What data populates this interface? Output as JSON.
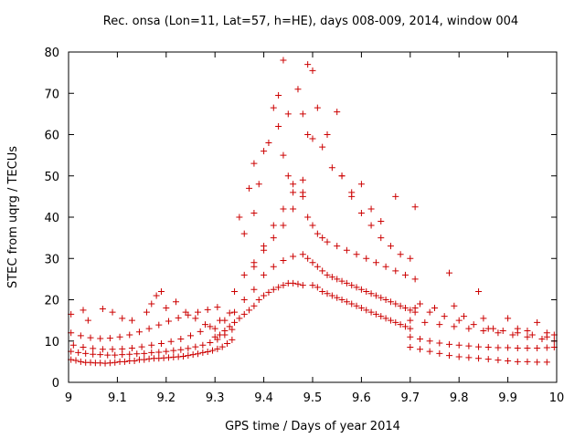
{
  "chart_data": {
    "type": "scatter",
    "title": "Rec. onsa (Lon=11, Lat=57, h=HE), days 008-009, 2014, window 004",
    "xlabel": "GPS time / Days of year 2014",
    "ylabel": "STEC from uqrg / TECUs",
    "xlim": [
      9.0,
      10.0
    ],
    "ylim": [
      0,
      80
    ],
    "xticks": [
      9.0,
      9.1,
      9.2,
      9.3,
      9.4,
      9.5,
      9.6,
      9.7,
      9.8,
      9.9,
      10.0
    ],
    "xtick_labels": [
      "9",
      "9.1",
      "9.2",
      "9.3",
      "9.4",
      "9.5",
      "9.6",
      "9.7",
      "9.8",
      "9.9",
      "10"
    ],
    "yticks": [
      0,
      10,
      20,
      30,
      40,
      50,
      60,
      70,
      80
    ],
    "ytick_labels": [
      "0",
      "10",
      "20",
      "30",
      "40",
      "50",
      "60",
      "70",
      "80"
    ],
    "marker": "+",
    "series_color": "#cc0000",
    "series": [
      {
        "name": "STEC",
        "x": [
          9.005,
          9.015,
          9.025,
          9.035,
          9.045,
          9.055,
          9.065,
          9.075,
          9.085,
          9.095,
          9.105,
          9.115,
          9.125,
          9.135,
          9.145,
          9.155,
          9.165,
          9.175,
          9.185,
          9.195,
          9.205,
          9.215,
          9.225,
          9.235,
          9.245,
          9.255,
          9.265,
          9.275,
          9.285,
          9.295,
          9.305,
          9.315,
          9.325,
          9.335,
          9.005,
          9.02,
          9.035,
          9.05,
          9.065,
          9.08,
          9.095,
          9.11,
          9.125,
          9.14,
          9.155,
          9.17,
          9.185,
          9.2,
          9.215,
          9.23,
          9.245,
          9.26,
          9.275,
          9.29,
          9.305,
          9.32,
          9.335,
          9.01,
          9.03,
          9.05,
          9.07,
          9.09,
          9.11,
          9.13,
          9.15,
          9.17,
          9.19,
          9.21,
          9.23,
          9.25,
          9.27,
          9.29,
          9.31,
          9.33,
          9.005,
          9.025,
          9.045,
          9.065,
          9.085,
          9.105,
          9.125,
          9.145,
          9.165,
          9.185,
          9.205,
          9.225,
          9.245,
          9.265,
          9.285,
          9.305,
          9.005,
          9.03,
          9.04,
          9.07,
          9.09,
          9.11,
          9.13,
          9.16,
          9.17,
          9.18,
          9.19,
          9.2,
          9.22,
          9.24,
          9.26,
          9.28,
          9.3,
          9.3,
          9.31,
          9.32,
          9.33,
          9.34,
          9.35,
          9.36,
          9.37,
          9.38,
          9.39,
          9.4,
          9.41,
          9.42,
          9.43,
          9.44,
          9.45,
          9.46,
          9.47,
          9.48,
          9.32,
          9.34,
          9.36,
          9.38,
          9.4,
          9.42,
          9.44,
          9.46,
          9.48,
          9.34,
          9.36,
          9.38,
          9.4,
          9.42,
          9.44,
          9.46,
          9.48,
          9.36,
          9.38,
          9.39,
          9.4,
          9.41,
          9.43,
          9.44,
          9.45,
          9.47,
          9.49,
          9.35,
          9.37,
          9.38,
          9.42,
          9.43,
          9.44,
          9.45,
          9.46,
          9.48,
          9.38,
          9.4,
          9.42,
          9.44,
          9.46,
          9.48,
          9.5,
          9.51,
          9.52,
          9.53,
          9.54,
          9.55,
          9.56,
          9.57,
          9.58,
          9.59,
          9.6,
          9.61,
          9.62,
          9.63,
          9.64,
          9.65,
          9.66,
          9.67,
          9.68,
          9.69,
          9.7,
          9.49,
          9.5,
          9.51,
          9.52,
          9.53,
          9.54,
          9.55,
          9.56,
          9.57,
          9.58,
          9.59,
          9.6,
          9.61,
          9.62,
          9.63,
          9.64,
          9.65,
          9.66,
          9.67,
          9.68,
          9.69,
          9.7,
          9.71,
          9.49,
          9.5,
          9.51,
          9.52,
          9.53,
          9.55,
          9.57,
          9.59,
          9.61,
          9.63,
          9.65,
          9.67,
          9.69,
          9.71,
          9.5,
          9.52,
          9.54,
          9.56,
          9.58,
          9.6,
          9.62,
          9.64,
          9.66,
          9.68,
          9.7,
          9.48,
          9.49,
          9.5,
          9.51,
          9.53,
          9.55,
          9.56,
          9.58,
          9.6,
          9.62,
          9.64,
          9.67,
          9.71,
          9.7,
          9.72,
          9.74,
          9.76,
          9.78,
          9.8,
          9.82,
          9.84,
          9.86,
          9.88,
          9.9,
          9.92,
          9.94,
          9.96,
          9.98,
          9.995,
          9.7,
          9.72,
          9.74,
          9.76,
          9.78,
          9.8,
          9.82,
          9.84,
          9.86,
          9.88,
          9.9,
          9.92,
          9.94,
          9.96,
          9.98,
          9.7,
          9.73,
          9.76,
          9.79,
          9.82,
          9.85,
          9.88,
          9.91,
          9.94,
          9.97,
          9.995,
          9.71,
          9.74,
          9.77,
          9.8,
          9.83,
          9.86,
          9.89,
          9.92,
          9.95,
          9.98,
          9.72,
          9.75,
          9.78,
          9.79,
          9.81,
          9.84,
          9.85,
          9.87,
          9.9,
          9.92,
          9.94,
          9.96,
          9.98,
          9.995
        ],
        "y": [
          5.5,
          5.3,
          5.0,
          4.8,
          4.8,
          4.7,
          4.7,
          4.6,
          4.7,
          4.8,
          5.0,
          5.0,
          5.2,
          5.2,
          5.5,
          5.5,
          5.7,
          5.8,
          5.8,
          5.9,
          6.0,
          6.1,
          6.2,
          6.3,
          6.5,
          6.7,
          6.9,
          7.2,
          7.4,
          7.7,
          8.1,
          8.6,
          9.4,
          10.3,
          7.5,
          7.2,
          7.0,
          6.8,
          6.7,
          6.6,
          6.6,
          6.7,
          6.8,
          6.9,
          7.0,
          7.2,
          7.3,
          7.5,
          7.7,
          7.9,
          8.2,
          8.6,
          9.0,
          9.6,
          10.4,
          11.5,
          12.8,
          9.0,
          8.5,
          8.2,
          8.0,
          8.0,
          8.1,
          8.3,
          8.6,
          9.0,
          9.4,
          9.9,
          10.5,
          11.3,
          12.3,
          13.5,
          15.0,
          16.8,
          12.0,
          11.3,
          10.8,
          10.6,
          10.7,
          11.0,
          11.5,
          12.2,
          13.0,
          13.9,
          14.8,
          15.6,
          16.3,
          17.0,
          17.6,
          18.2,
          16.5,
          17.5,
          15.0,
          17.8,
          17.0,
          15.5,
          15.0,
          17.0,
          19.0,
          21.0,
          22.0,
          18.0,
          19.5,
          17.0,
          15.5,
          14.0,
          13.0,
          11.0,
          11.5,
          12.5,
          13.5,
          14.5,
          15.5,
          16.5,
          17.5,
          18.5,
          20.0,
          21.0,
          21.8,
          22.5,
          23.0,
          23.5,
          24.0,
          24.0,
          23.8,
          23.5,
          15.0,
          17.0,
          20.0,
          22.5,
          26.0,
          28.0,
          29.5,
          30.5,
          31.0,
          22.0,
          26.0,
          29.0,
          32.0,
          35.0,
          38.0,
          42.0,
          45.0,
          36.0,
          41.0,
          48.0,
          56.0,
          58.0,
          62.0,
          55.0,
          65.0,
          71.0,
          77.0,
          40.0,
          47.0,
          53.0,
          66.5,
          69.5,
          78.0,
          50.0,
          48.0,
          46.0,
          28.0,
          33.0,
          38.0,
          42.0,
          46.0,
          49.0,
          23.5,
          23.0,
          22.0,
          21.5,
          21.0,
          20.5,
          20.0,
          19.5,
          19.0,
          18.5,
          18.0,
          17.5,
          17.0,
          16.5,
          16.0,
          15.5,
          15.0,
          14.5,
          14.0,
          13.5,
          13.0,
          30.0,
          29.0,
          28.0,
          27.0,
          26.0,
          25.5,
          25.0,
          24.5,
          24.0,
          23.5,
          23.0,
          22.5,
          22.0,
          21.5,
          21.0,
          20.5,
          20.0,
          19.5,
          19.0,
          18.5,
          18.0,
          17.5,
          17.0,
          40.0,
          38.0,
          36.0,
          35.0,
          34.0,
          33.0,
          32.0,
          31.0,
          30.0,
          29.0,
          28.0,
          27.0,
          26.0,
          25.0,
          59.0,
          57.0,
          52.0,
          50.0,
          45.0,
          41.0,
          38.0,
          35.0,
          33.0,
          31.0,
          30.0,
          65.0,
          60.0,
          75.5,
          66.5,
          60.0,
          65.5,
          50.0,
          46.0,
          48.0,
          42.0,
          39.0,
          45.0,
          42.5,
          11.0,
          10.5,
          10.0,
          9.5,
          9.2,
          9.0,
          8.8,
          8.6,
          8.5,
          8.4,
          8.4,
          8.3,
          8.3,
          8.3,
          8.4,
          8.5,
          8.5,
          8.0,
          7.5,
          7.0,
          6.5,
          6.2,
          6.0,
          5.8,
          5.6,
          5.4,
          5.2,
          5.0,
          5.0,
          4.9,
          4.9,
          15.0,
          14.5,
          14.0,
          13.5,
          13.0,
          12.5,
          12.0,
          11.5,
          11.0,
          10.5,
          10.0,
          18.0,
          17.0,
          16.0,
          15.0,
          14.0,
          13.0,
          12.5,
          12.0,
          11.5,
          11.0,
          19.0,
          18.0,
          26.5,
          18.5,
          16.0,
          22.0,
          15.5,
          13.0,
          15.5,
          13.0,
          12.5,
          14.5,
          12.0,
          11.5
        ]
      }
    ]
  }
}
